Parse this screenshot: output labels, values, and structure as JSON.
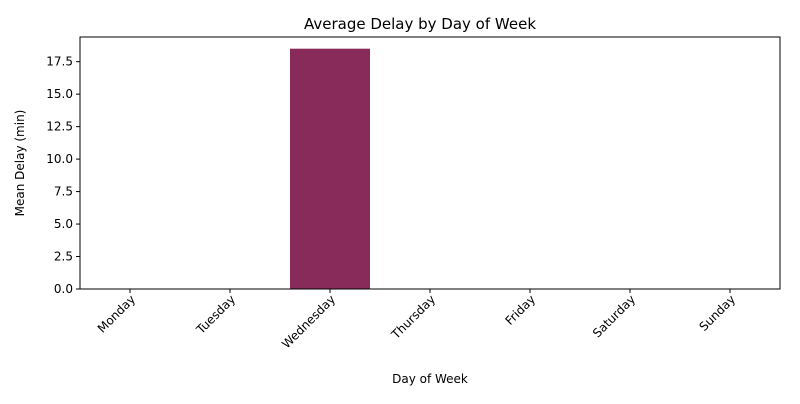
{
  "chart_data": {
    "type": "bar",
    "title": "Average Delay by Day of Week",
    "xlabel": "Day of Week",
    "ylabel": "Mean Delay (min)",
    "categories": [
      "Monday",
      "Tuesday",
      "Wednesday",
      "Thursday",
      "Friday",
      "Saturday",
      "Sunday"
    ],
    "values": [
      0,
      0,
      18.5,
      0,
      0,
      0,
      0
    ],
    "ylim": [
      0,
      19.4
    ],
    "yticks": [
      "0.0",
      "2.5",
      "5.0",
      "7.5",
      "10.0",
      "12.5",
      "15.0",
      "17.5"
    ],
    "bar_color": "#882a5a",
    "grid": false,
    "legend": "none"
  }
}
